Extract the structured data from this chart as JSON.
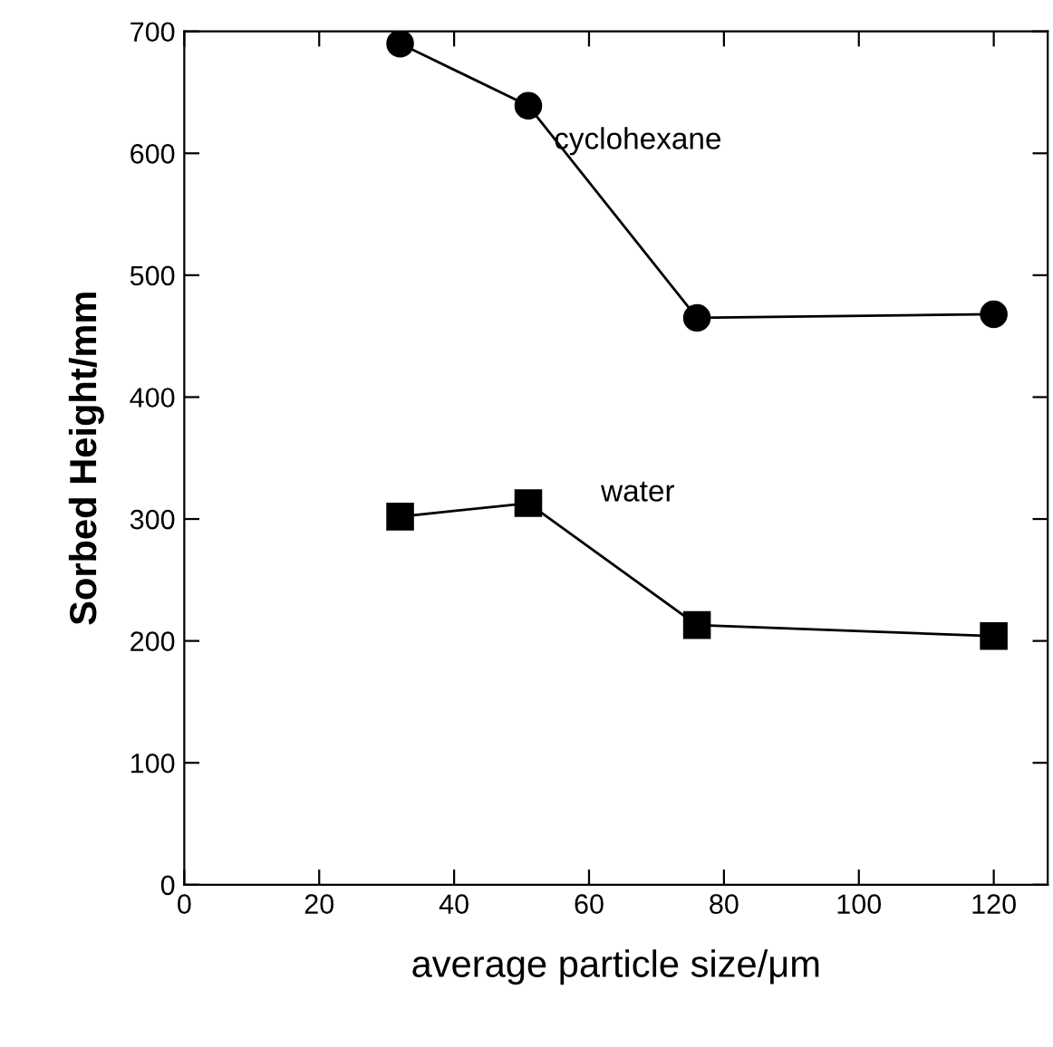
{
  "chart_data": {
    "type": "line",
    "xlabel": "average particle size/μm",
    "ylabel": "Sorbed Height/mm",
    "xlim": [
      0,
      128
    ],
    "xticks": [
      0,
      20,
      40,
      60,
      80,
      100,
      120
    ],
    "ylim": [
      0,
      700
    ],
    "yticks": [
      0,
      100,
      200,
      300,
      400,
      500,
      600,
      700
    ],
    "grid": false,
    "legend": false,
    "series": [
      {
        "name": "cyclohexane",
        "color": "#000000",
        "marker": "circle",
        "x": [
          32,
          51,
          76,
          120
        ],
        "values": [
          690,
          639,
          465,
          468
        ]
      },
      {
        "name": "water",
        "color": "#000000",
        "marker": "square",
        "x": [
          32,
          51,
          76,
          120
        ],
        "values": [
          302,
          313,
          213,
          204
        ]
      }
    ]
  }
}
